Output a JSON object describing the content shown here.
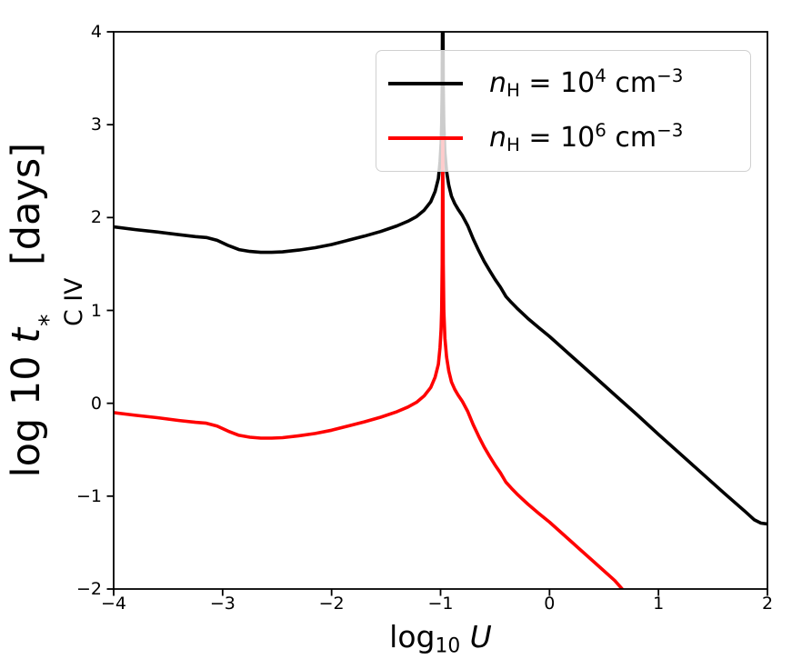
{
  "chart_data": {
    "type": "line",
    "title": "",
    "xlabel_plain": "log_10 U",
    "ylabel_plain": "log 10 t*_C IV [days]",
    "xlabel_segments": [
      {
        "t": "log"
      },
      {
        "t": "10",
        "style": "sub"
      },
      {
        "t": " "
      },
      {
        "t": "U",
        "style": "italic"
      }
    ],
    "ylabel_segments": [
      {
        "t": "log 10 "
      },
      {
        "t": "t",
        "style": "italic"
      },
      {
        "stack": {
          "top": "*",
          "bottom": "C IV"
        }
      },
      {
        "t": " [days]"
      }
    ],
    "xlim": [
      -4,
      2
    ],
    "ylim": [
      -2,
      4
    ],
    "grid": false,
    "x_ticks": {
      "values": [
        -4,
        -3,
        -2,
        -1,
        0,
        1,
        2
      ],
      "labels": [
        "−4",
        "−3",
        "−2",
        "−1",
        "0",
        "1",
        "2"
      ]
    },
    "y_ticks": {
      "values": [
        -2,
        -1,
        0,
        1,
        2,
        3,
        4
      ],
      "labels": [
        "−2",
        "−1",
        "0",
        "1",
        "2",
        "3",
        "4"
      ]
    },
    "legend": {
      "location": "upper center-right",
      "framealpha": 0.8,
      "border_color": "#d0d0d0",
      "entries": [
        {
          "color": "#000000",
          "label_plain": "n_H = 10^4 cm^-3",
          "label_segments": [
            {
              "t": "n",
              "style": "italic"
            },
            {
              "t": "H",
              "style": "sub"
            },
            {
              "t": " = 10"
            },
            {
              "t": "4",
              "style": "sup"
            },
            {
              "t": " cm"
            },
            {
              "t": "−3",
              "style": "sup"
            }
          ]
        },
        {
          "color": "#ff0000",
          "label_plain": "n_H = 10^6 cm^-3",
          "label_segments": [
            {
              "t": "n",
              "style": "italic"
            },
            {
              "t": "H",
              "style": "sub"
            },
            {
              "t": " = 10"
            },
            {
              "t": "6",
              "style": "sup"
            },
            {
              "t": " cm"
            },
            {
              "t": "−3",
              "style": "sup"
            }
          ]
        }
      ]
    },
    "series": [
      {
        "name": "n_H = 10^4 cm^-3",
        "color": "#000000",
        "linewidth": 3.6,
        "points": [
          [
            -4.0,
            1.9
          ],
          [
            -3.8,
            1.87
          ],
          [
            -3.6,
            1.845
          ],
          [
            -3.4,
            1.815
          ],
          [
            -3.25,
            1.795
          ],
          [
            -3.15,
            1.785
          ],
          [
            -3.05,
            1.755
          ],
          [
            -2.95,
            1.7
          ],
          [
            -2.85,
            1.655
          ],
          [
            -2.75,
            1.635
          ],
          [
            -2.65,
            1.625
          ],
          [
            -2.55,
            1.625
          ],
          [
            -2.45,
            1.63
          ],
          [
            -2.3,
            1.65
          ],
          [
            -2.15,
            1.675
          ],
          [
            -2.0,
            1.71
          ],
          [
            -1.85,
            1.755
          ],
          [
            -1.7,
            1.8
          ],
          [
            -1.55,
            1.85
          ],
          [
            -1.4,
            1.91
          ],
          [
            -1.3,
            1.96
          ],
          [
            -1.22,
            2.01
          ],
          [
            -1.15,
            2.08
          ],
          [
            -1.09,
            2.17
          ],
          [
            -1.05,
            2.28
          ],
          [
            -1.02,
            2.42
          ],
          [
            -1.005,
            2.6
          ],
          [
            -0.995,
            2.8
          ],
          [
            -0.99,
            3.0
          ],
          [
            -0.985,
            3.4
          ],
          [
            -0.98,
            4.9
          ],
          [
            -0.975,
            3.4
          ],
          [
            -0.97,
            3.0
          ],
          [
            -0.96,
            2.7
          ],
          [
            -0.945,
            2.5
          ],
          [
            -0.925,
            2.35
          ],
          [
            -0.9,
            2.23
          ],
          [
            -0.87,
            2.15
          ],
          [
            -0.84,
            2.09
          ],
          [
            -0.8,
            2.02
          ],
          [
            -0.75,
            1.91
          ],
          [
            -0.7,
            1.77
          ],
          [
            -0.65,
            1.645
          ],
          [
            -0.6,
            1.53
          ],
          [
            -0.55,
            1.43
          ],
          [
            -0.5,
            1.335
          ],
          [
            -0.45,
            1.25
          ],
          [
            -0.4,
            1.15
          ],
          [
            -0.35,
            1.085
          ],
          [
            -0.3,
            1.025
          ],
          [
            -0.25,
            0.97
          ],
          [
            -0.2,
            0.915
          ],
          [
            -0.1,
            0.815
          ],
          [
            0.0,
            0.72
          ],
          [
            0.2,
            0.51
          ],
          [
            0.4,
            0.3
          ],
          [
            0.6,
            0.09
          ],
          [
            0.8,
            -0.12
          ],
          [
            1.0,
            -0.335
          ],
          [
            1.2,
            -0.545
          ],
          [
            1.4,
            -0.755
          ],
          [
            1.6,
            -0.965
          ],
          [
            1.8,
            -1.17
          ],
          [
            1.88,
            -1.255
          ],
          [
            1.94,
            -1.29
          ],
          [
            2.0,
            -1.3
          ]
        ]
      },
      {
        "name": "n_H = 10^6 cm^-3",
        "color": "#ff0000",
        "linewidth": 3.6,
        "points": [
          [
            -4.0,
            -0.1
          ],
          [
            -3.8,
            -0.13
          ],
          [
            -3.6,
            -0.155
          ],
          [
            -3.4,
            -0.185
          ],
          [
            -3.25,
            -0.205
          ],
          [
            -3.15,
            -0.215
          ],
          [
            -3.05,
            -0.245
          ],
          [
            -2.95,
            -0.3
          ],
          [
            -2.85,
            -0.345
          ],
          [
            -2.75,
            -0.365
          ],
          [
            -2.65,
            -0.375
          ],
          [
            -2.55,
            -0.375
          ],
          [
            -2.45,
            -0.37
          ],
          [
            -2.3,
            -0.35
          ],
          [
            -2.15,
            -0.325
          ],
          [
            -2.0,
            -0.29
          ],
          [
            -1.85,
            -0.245
          ],
          [
            -1.7,
            -0.2
          ],
          [
            -1.55,
            -0.15
          ],
          [
            -1.4,
            -0.09
          ],
          [
            -1.3,
            -0.04
          ],
          [
            -1.22,
            0.01
          ],
          [
            -1.15,
            0.08
          ],
          [
            -1.09,
            0.17
          ],
          [
            -1.05,
            0.28
          ],
          [
            -1.02,
            0.42
          ],
          [
            -1.005,
            0.6
          ],
          [
            -0.995,
            0.8
          ],
          [
            -0.99,
            1.0
          ],
          [
            -0.985,
            1.5
          ],
          [
            -0.98,
            2.85
          ],
          [
            -0.975,
            1.5
          ],
          [
            -0.97,
            1.0
          ],
          [
            -0.96,
            0.7
          ],
          [
            -0.945,
            0.5
          ],
          [
            -0.925,
            0.35
          ],
          [
            -0.9,
            0.23
          ],
          [
            -0.87,
            0.15
          ],
          [
            -0.84,
            0.09
          ],
          [
            -0.8,
            0.02
          ],
          [
            -0.75,
            -0.09
          ],
          [
            -0.7,
            -0.23
          ],
          [
            -0.65,
            -0.355
          ],
          [
            -0.6,
            -0.47
          ],
          [
            -0.55,
            -0.57
          ],
          [
            -0.5,
            -0.665
          ],
          [
            -0.45,
            -0.75
          ],
          [
            -0.4,
            -0.85
          ],
          [
            -0.35,
            -0.915
          ],
          [
            -0.3,
            -0.975
          ],
          [
            -0.25,
            -1.03
          ],
          [
            -0.2,
            -1.085
          ],
          [
            -0.1,
            -1.185
          ],
          [
            0.0,
            -1.28
          ],
          [
            0.2,
            -1.49
          ],
          [
            0.4,
            -1.7
          ],
          [
            0.6,
            -1.91
          ],
          [
            0.72,
            -2.07
          ]
        ]
      }
    ],
    "axis_color": "#000000",
    "tick_direction": "out"
  }
}
